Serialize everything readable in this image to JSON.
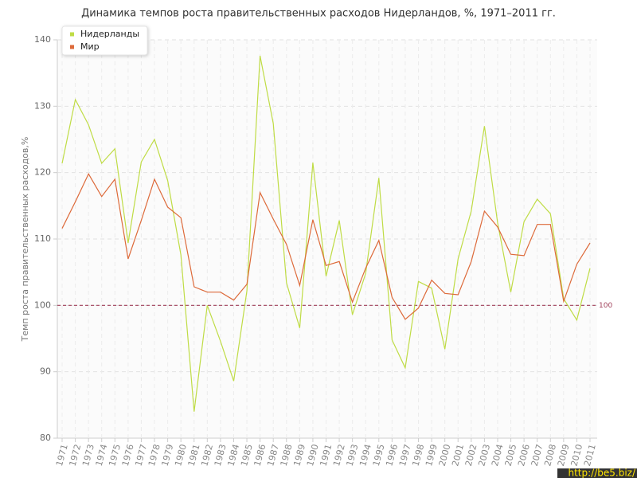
{
  "chart_data": {
    "type": "line",
    "title": "Динамика темпов роста правительственных расходов Нидерландов, %, 1971–2011 гг.",
    "y_label": "Темп роста правительственных расходов,%",
    "categories": [
      "1971",
      "1972",
      "1973",
      "1974",
      "1975",
      "1976",
      "1977",
      "1978",
      "1979",
      "1980",
      "1981",
      "1982",
      "1983",
      "1984",
      "1985",
      "1986",
      "1987",
      "1988",
      "1989",
      "1990",
      "1991",
      "1992",
      "1993",
      "1994",
      "1995",
      "1996",
      "1997",
      "1998",
      "1999",
      "2000",
      "2001",
      "2002",
      "2003",
      "2004",
      "2005",
      "2006",
      "2007",
      "2008",
      "2009",
      "2010",
      "2011"
    ],
    "series": [
      {
        "name": "Нидерланды",
        "color": "#bfdc45",
        "values": [
          121.4,
          131,
          127.2,
          121.4,
          123.6,
          109.4,
          121.6,
          125,
          118.8,
          107.6,
          84,
          100,
          94.6,
          88.6,
          102.2,
          137.6,
          127.4,
          103.4,
          96.6,
          121.5,
          104.4,
          112.8,
          98.6,
          104.8,
          119.2,
          94.8,
          90.6,
          103.6,
          102.6,
          93.4,
          107,
          114.2,
          127,
          112.4,
          102,
          112.6,
          116,
          113.8,
          101,
          97.8,
          105.6
        ]
      },
      {
        "name": "Мир",
        "color": "#dd6a3a",
        "values": [
          111.6,
          115.6,
          119.8,
          116.4,
          119,
          107,
          112.8,
          119,
          114.8,
          113.2,
          102.8,
          102,
          102,
          100.8,
          103.2,
          117,
          113,
          109.2,
          103,
          112.9,
          106,
          106.6,
          100.5,
          105.6,
          109.8,
          101.2,
          97.9,
          99.6,
          103.8,
          101.8,
          101.6,
          106.6,
          114.2,
          111.8,
          107.7,
          107.5,
          112.2,
          112.2,
          100.6,
          106.2,
          109.4
        ]
      }
    ],
    "ylim": [
      80,
      140
    ],
    "yticks": [
      80,
      90,
      100,
      110,
      120,
      130,
      140
    ],
    "grid": true,
    "reference_line": 100,
    "reference_color": "#a0405a",
    "legend": "top-left",
    "watermark": "http://be5.biz/"
  }
}
